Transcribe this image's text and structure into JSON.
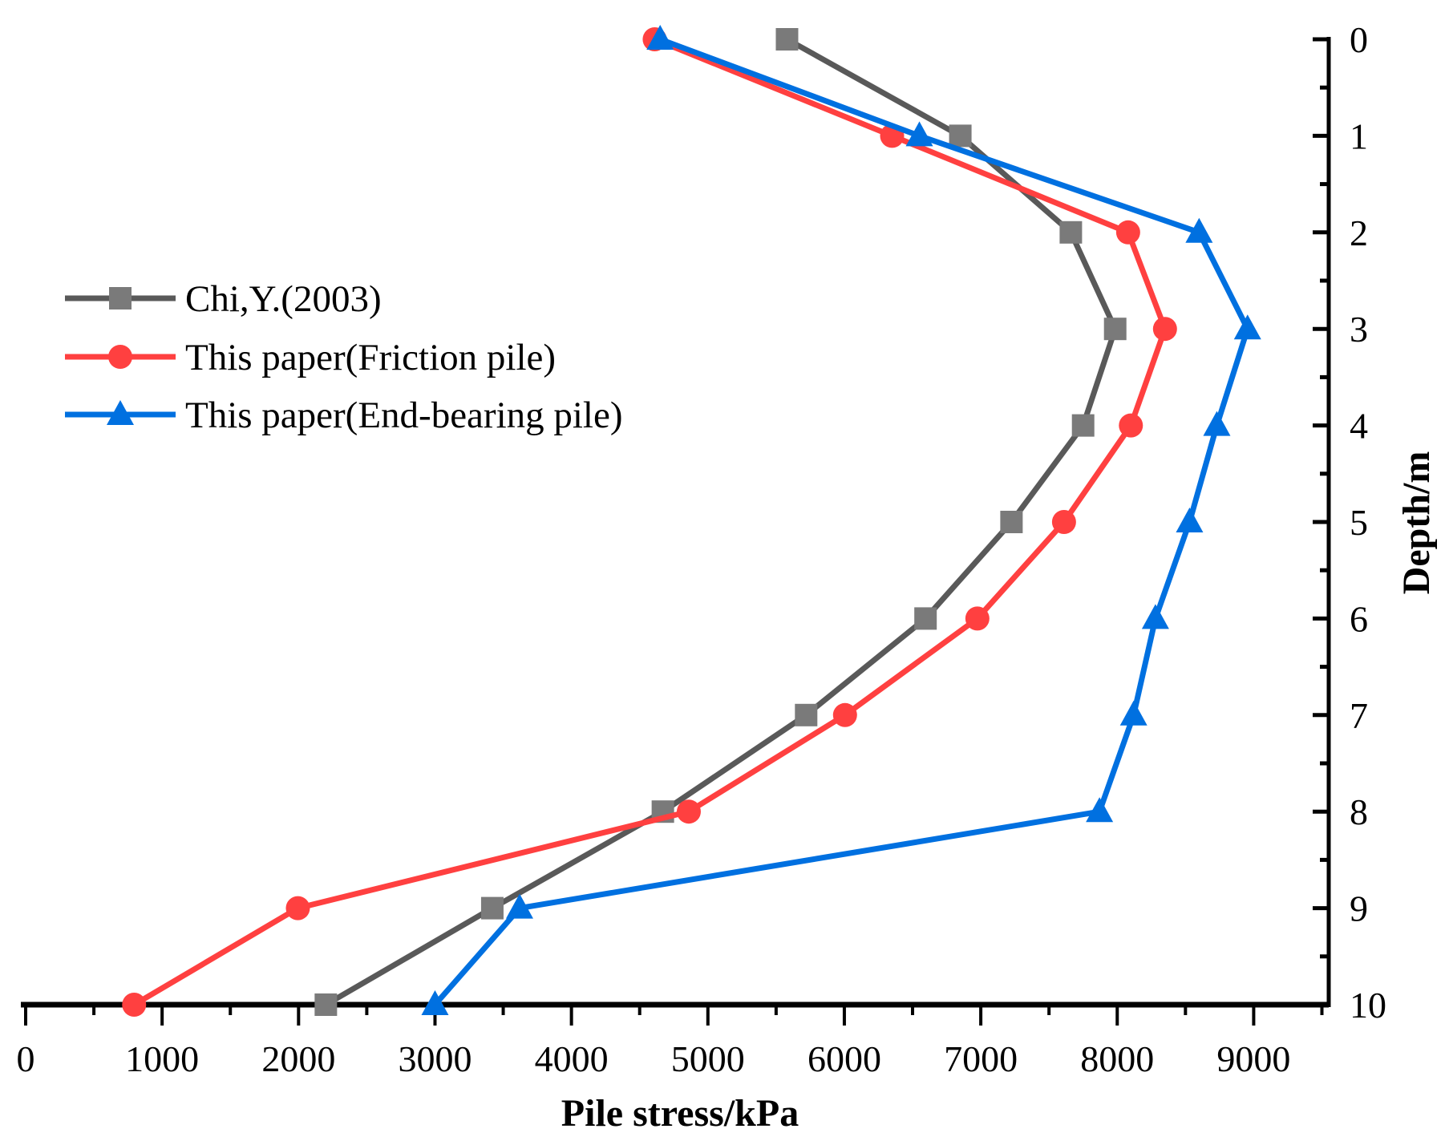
{
  "chart_data": {
    "type": "line",
    "xlabel": "Pile stress/kPa",
    "ylabel": "Depth/m",
    "xlim": [
      0,
      9550
    ],
    "ylim": [
      0,
      10
    ],
    "y_inverted": true,
    "y_axis_side": "right",
    "x_ticks": [
      "0",
      "1000",
      "2000",
      "3000",
      "4000",
      "5000",
      "6000",
      "7000",
      "8000",
      "9000"
    ],
    "y_ticks": [
      "0",
      "1",
      "2",
      "3",
      "4",
      "5",
      "6",
      "7",
      "8",
      "9",
      "10"
    ],
    "grid": false,
    "legend_position": "left",
    "series": [
      {
        "name": "Chi,Y.(2003)",
        "color": "#595959",
        "marker_color": "#7a7a7a",
        "marker": "square",
        "depth": [
          0,
          1,
          2,
          3,
          4,
          5,
          6,
          7,
          8,
          9,
          10
        ],
        "stress": [
          5580,
          6850,
          7660,
          7985,
          7750,
          7225,
          6595,
          5720,
          4670,
          3420,
          2200
        ]
      },
      {
        "name": "This paper(Friction pile)",
        "color": "#ff4040",
        "marker_color": "#ff4040",
        "marker": "circle",
        "depth": [
          0,
          1,
          2,
          3,
          4,
          5,
          6,
          7,
          8,
          9,
          10
        ],
        "stress": [
          4610,
          6350,
          8080,
          8350,
          8100,
          7610,
          6975,
          6005,
          4860,
          1995,
          795
        ]
      },
      {
        "name": "This paper(End-bearing pile)",
        "color": "#0070e0",
        "marker_color": "#0070e0",
        "marker": "triangle",
        "depth": [
          0,
          1,
          2,
          3,
          4,
          5,
          6,
          7,
          8,
          9,
          10
        ],
        "stress": [
          4650,
          6550,
          8600,
          8955,
          8730,
          8530,
          8280,
          8120,
          7870,
          3620,
          3000
        ]
      }
    ]
  }
}
